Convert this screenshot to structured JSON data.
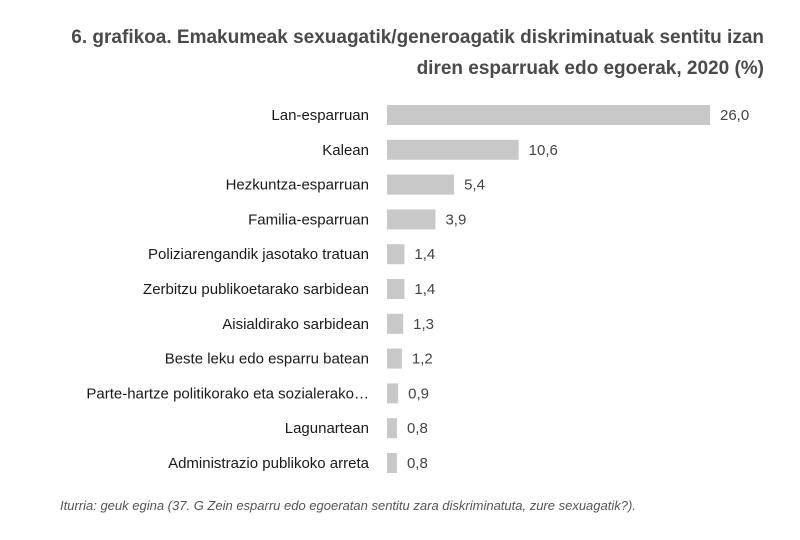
{
  "title_line1": "6. grafikoa. Emakumeak sexuagatik/generoagatik diskriminatuak sentitu izan",
  "title_line2": "diren esparruak edo egoerak, 2020 (%)",
  "source": "Iturria: geuk egina (37. G Zein esparru edo egoeratan sentitu zara diskriminatuta, zure sexuagatik?).",
  "bar_color": "#c8c8c8",
  "chart_data": {
    "type": "bar",
    "orientation": "horizontal",
    "categories": [
      "Lan-esparruan",
      "Kalean",
      "Hezkuntza-esparruan",
      "Familia-esparruan",
      "Poliziarengandik jasotako tratuan",
      "Zerbitzu publikoetarako sarbidean",
      "Aisialdirako sarbidean",
      "Beste leku edo esparru batean",
      "Parte-hartze politikorako eta sozialerako…",
      "Lagunartean",
      "Administrazio publikoko arreta"
    ],
    "values": [
      26.0,
      10.6,
      5.4,
      3.9,
      1.4,
      1.4,
      1.3,
      1.2,
      0.9,
      0.8,
      0.8
    ],
    "value_labels": [
      "26,0",
      "10,6",
      "5,4",
      "3,9",
      "1,4",
      "1,4",
      "1,3",
      "1,2",
      "0,9",
      "0,8",
      "0,8"
    ],
    "xlim": [
      0,
      26.0
    ],
    "grid": false,
    "legend": "none"
  }
}
